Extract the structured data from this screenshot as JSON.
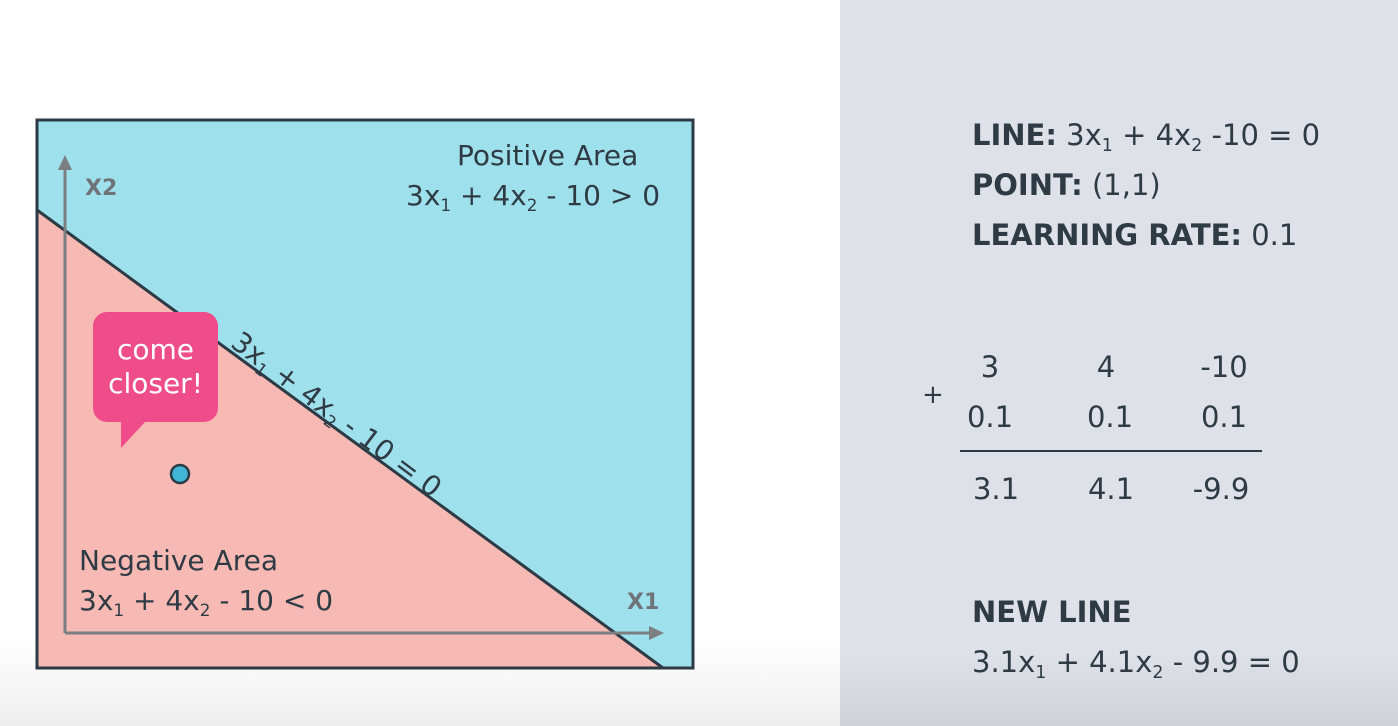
{
  "diagram": {
    "positive_area": {
      "title": "Positive Area",
      "equation": {
        "a": "3x",
        "b": " + 4x",
        "c": " - 10 > 0",
        "s1": "1",
        "s2": "2"
      }
    },
    "negative_area": {
      "title": "Negative Area",
      "equation": {
        "a": "3x",
        "b": " + 4x",
        "c": " - 10 < 0",
        "s1": "1",
        "s2": "2"
      }
    },
    "line_label": {
      "a": "3x",
      "b": " + 4x",
      "c": " - 10 = 0",
      "s1": "1",
      "s2": "2"
    },
    "x_axis_label": "X1",
    "y_axis_label": "X2",
    "bubble_text": {
      "line1": "come",
      "line2": "closer!"
    },
    "colors": {
      "positive": "#9ee0ec",
      "negative": "#f7b9b3",
      "bubble": "#ee4d8a",
      "point": "#3fb6d6",
      "axis": "#7b7f82",
      "line": "#2b3a44"
    }
  },
  "info": {
    "line": {
      "label": "LINE:",
      "a": " 3x",
      "b": " + 4x",
      "c": " -10 = 0",
      "s1": "1",
      "s2": "2"
    },
    "point": {
      "label": "POINT:",
      "value": " (1,1)"
    },
    "learning_rate": {
      "label": "LEARNING RATE:",
      "value": " 0.1"
    }
  },
  "calc": {
    "operator": "+",
    "row1": [
      "3",
      "4",
      "-10"
    ],
    "row2": [
      "0.1",
      "0.1",
      "0.1"
    ],
    "result": [
      "3.1",
      "4.1",
      "-9.9"
    ]
  },
  "new_line": {
    "label": "NEW LINE",
    "equation": {
      "a": "3.1x",
      "b": " + 4.1x",
      "c": " - 9.9 = 0",
      "s1": "1",
      "s2": "2"
    }
  }
}
